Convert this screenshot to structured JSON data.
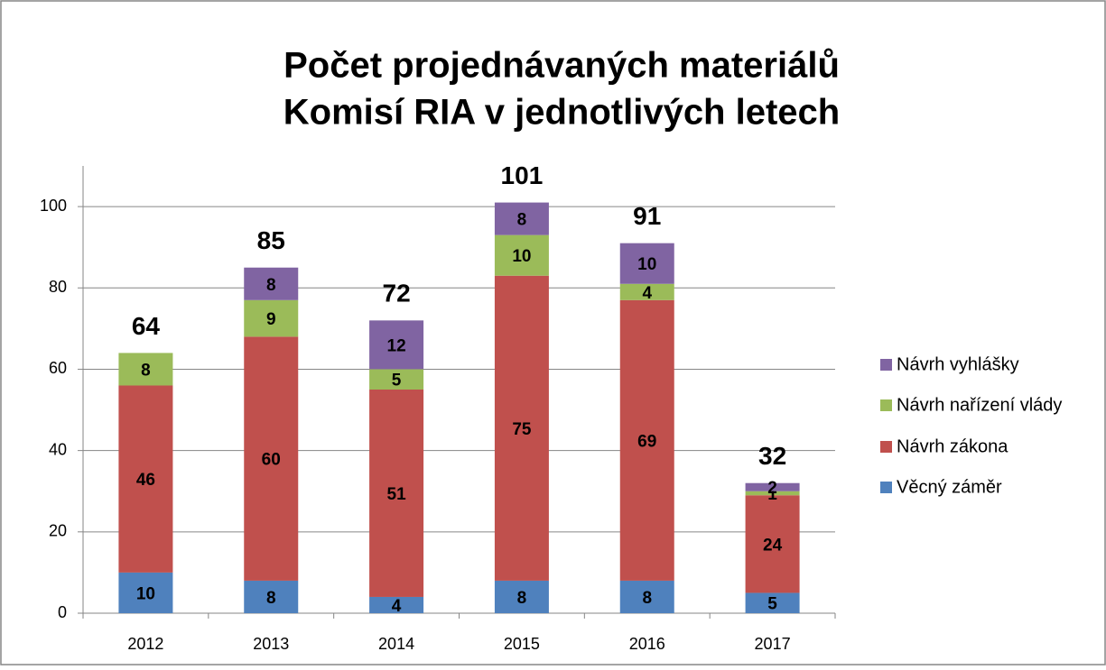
{
  "chart_data": {
    "type": "stacked_bar",
    "title": [
      "Počet projednávaných materiálů",
      "Komisí RIA v jednotlivých letech"
    ],
    "categories": [
      "2012",
      "2013",
      "2014",
      "2015",
      "2016",
      "2017"
    ],
    "series": [
      {
        "name": "Věcný záměr",
        "color": "#4f81bd",
        "values": [
          10,
          8,
          4,
          8,
          8,
          5
        ]
      },
      {
        "name": "Návrh zákona",
        "color": "#c0504d",
        "values": [
          46,
          60,
          51,
          75,
          69,
          24
        ]
      },
      {
        "name": "Návrh nařízení vlády",
        "color": "#9bbb59",
        "values": [
          8,
          9,
          5,
          10,
          4,
          1
        ]
      },
      {
        "name": "Návrh vyhlášky",
        "color": "#8064a2",
        "values": [
          null,
          8,
          12,
          8,
          10,
          2
        ]
      }
    ],
    "totals": [
      64,
      85,
      72,
      101,
      91,
      32
    ],
    "ylim": [
      0,
      110
    ],
    "yticks": [
      0,
      20,
      40,
      60,
      80,
      100
    ],
    "grid": true,
    "legend": "right"
  }
}
